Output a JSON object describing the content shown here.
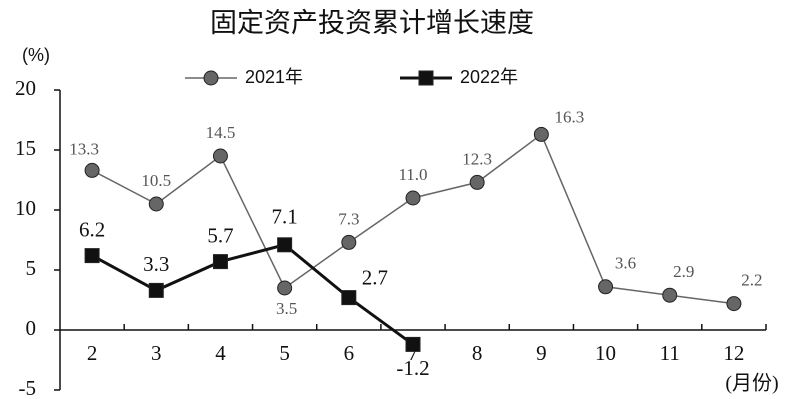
{
  "chart_data": {
    "type": "line",
    "title": "固定资产投资累计增长速度",
    "y_label": "(%)",
    "x_label": "(月份)",
    "categories": [
      "2",
      "3",
      "4",
      "5",
      "6",
      "7",
      "8",
      "9",
      "10",
      "11",
      "12"
    ],
    "series": [
      {
        "name": "2021年",
        "color": "#666666",
        "marker": "circle",
        "values": [
          13.3,
          10.5,
          14.5,
          3.5,
          7.3,
          11.0,
          12.3,
          16.3,
          3.6,
          2.9,
          2.2
        ],
        "value_labels": [
          "13.3",
          "10.5",
          "14.5",
          "3.5",
          "7.3",
          "11.0",
          "12.3",
          "16.3",
          "3.6",
          "2.9",
          "2.2"
        ]
      },
      {
        "name": "2022年",
        "color": "#111111",
        "marker": "square",
        "values": [
          6.2,
          3.3,
          5.7,
          7.1,
          2.7,
          -1.2,
          null,
          null,
          null,
          null,
          null
        ]
      }
    ],
    "ylim": [
      -5,
      20
    ],
    "yticks": [
      -5,
      0,
      5,
      10,
      15,
      20
    ]
  }
}
